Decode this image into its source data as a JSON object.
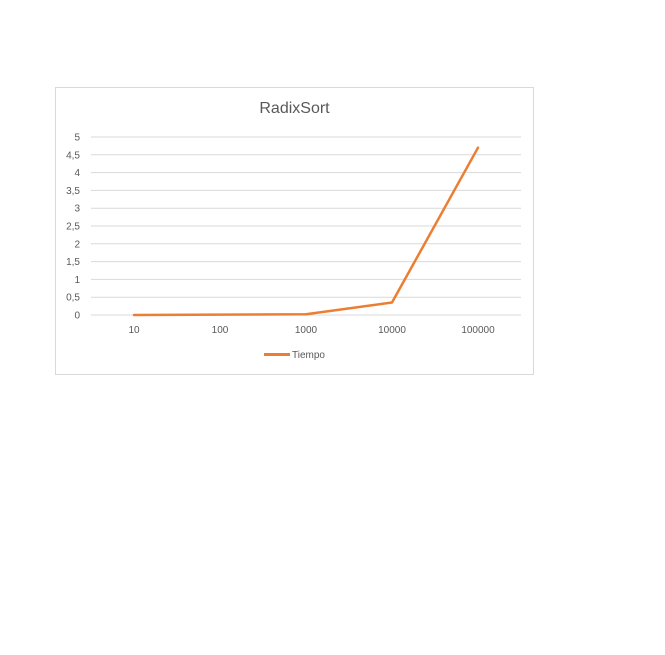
{
  "chart_data": {
    "type": "line",
    "title": "RadixSort",
    "xlabel": "",
    "ylabel": "",
    "categories": [
      "10",
      "100",
      "1000",
      "10000",
      "100000"
    ],
    "yticks": [
      "0",
      "0,5",
      "1",
      "1,5",
      "2",
      "2,5",
      "3",
      "3,5",
      "4",
      "4,5",
      "5"
    ],
    "ylim": [
      0,
      5
    ],
    "grid": true,
    "legend_position": "bottom",
    "series": [
      {
        "name": "Tiempo",
        "color": "#ed7d31",
        "values": [
          0,
          0.01,
          0.02,
          0.35,
          4.7
        ]
      }
    ]
  }
}
